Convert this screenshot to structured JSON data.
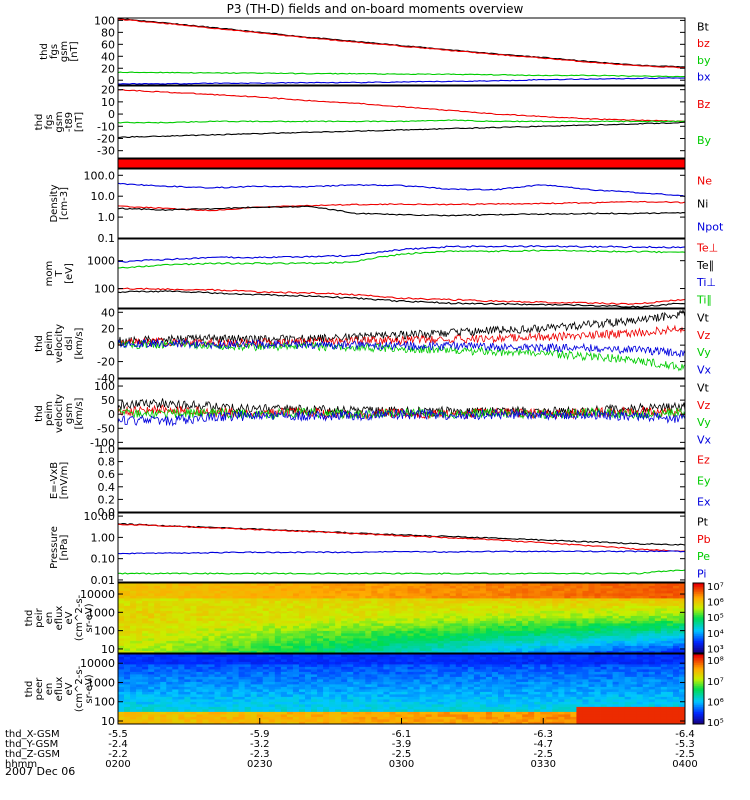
{
  "title": "P3 (TH-D) fields and on-board moments overview",
  "date_label": "2007 Dec 06",
  "colors": {
    "black": "#000000",
    "red": "#ee0000",
    "green": "#00cc00",
    "blue": "#0000dd",
    "band": "#ff0000"
  },
  "panels": [
    {
      "ylabel_lines": [
        "thd",
        "fgs",
        "gsm",
        "[nT]"
      ],
      "ticks": [
        [
          "100",
          100
        ],
        [
          "80",
          80
        ],
        [
          "60",
          60
        ],
        [
          "40",
          40
        ],
        [
          "20",
          20
        ],
        [
          "0",
          0
        ]
      ],
      "legend": [
        {
          "text": "Bt",
          "color": "black"
        },
        {
          "text": "bz",
          "color": "red"
        },
        {
          "text": "by",
          "color": "green"
        },
        {
          "text": "bx",
          "color": "blue"
        }
      ],
      "chart_data": {
        "type": "line",
        "ylim": [
          -8,
          104
        ],
        "x": [
          0,
          10,
          20,
          30,
          40,
          50,
          60,
          70,
          80,
          90,
          100,
          110,
          120
        ],
        "series": [
          {
            "name": "Bt",
            "color": "black",
            "values": [
              103,
              96,
              88,
              80,
              72,
              65,
              58,
              51,
              44,
              38,
              31,
              25,
              22
            ]
          },
          {
            "name": "bz",
            "color": "red",
            "values": [
              102,
              95,
              87,
              79,
              71,
              64,
              57,
              50,
              43,
              37,
              30,
              24,
              21
            ]
          },
          {
            "name": "by",
            "color": "green",
            "values": [
              13,
              13,
              12,
              12,
              11,
              11,
              10,
              10,
              9,
              8,
              8,
              7,
              6
            ]
          },
          {
            "name": "bx",
            "color": "blue",
            "values": [
              -6,
              -6,
              -5,
              -5,
              -4,
              -4,
              -3,
              -2,
              -1,
              1,
              2,
              3,
              4
            ]
          }
        ]
      }
    },
    {
      "ylabel_lines": [
        "thd",
        "fgs",
        "gsm",
        "-t89",
        "[nT]"
      ],
      "ticks": [
        [
          "20",
          20
        ],
        [
          "10",
          10
        ],
        [
          "0",
          0
        ],
        [
          "-10",
          -10
        ],
        [
          "-20",
          -20
        ],
        [
          "-30",
          -30
        ]
      ],
      "legend": [
        {
          "text": "Bz",
          "color": "red"
        },
        {
          "text": "By",
          "color": "green"
        }
      ],
      "chart_data": {
        "type": "line",
        "ylim": [
          -36,
          23
        ],
        "x": [
          0,
          10,
          20,
          30,
          40,
          50,
          60,
          70,
          80,
          90,
          100,
          110,
          120
        ],
        "series": [
          {
            "name": "Bz",
            "color": "red",
            "values": [
              20,
              18,
              16,
              14,
              11,
              9,
              6,
              3,
              0,
              -2,
              -4,
              -5,
              -6
            ]
          },
          {
            "name": "By",
            "color": "green",
            "values": [
              -7,
              -7,
              -6,
              -6,
              -6,
              -6,
              -6,
              -5,
              -6,
              -6,
              -6,
              -6,
              -6
            ]
          },
          {
            "name": "",
            "color": "black",
            "values": [
              -19,
              -18,
              -17,
              -16,
              -15,
              -14,
              -13,
              -12,
              -11,
              -10,
              -9,
              -8,
              -7
            ]
          }
        ]
      }
    },
    {
      "band": true,
      "chart_data": {
        "type": "bar",
        "values": [
          1
        ]
      }
    },
    {
      "ylabel_lines": [
        "Density",
        "[cm-3]"
      ],
      "log": true,
      "ticks": [
        [
          "100.0",
          100
        ],
        [
          "10.0",
          10
        ],
        [
          "1.0",
          1
        ],
        [
          "0.1",
          0.1
        ]
      ],
      "legend": [
        {
          "text": "Ne",
          "color": "red"
        },
        {
          "text": "Ni",
          "color": "black"
        },
        {
          "text": "Npot",
          "color": "blue"
        }
      ],
      "chart_data": {
        "type": "line",
        "ylim": [
          0.1,
          200
        ],
        "x": [
          0,
          10,
          20,
          30,
          40,
          50,
          60,
          70,
          80,
          90,
          100,
          110,
          120
        ],
        "series": [
          {
            "name": "Ne",
            "color": "red",
            "values": [
              3.3,
              2.6,
              2,
              3,
              3.5,
              4,
              4.2,
              4,
              4.2,
              4.5,
              4.8,
              5.5,
              5
            ]
          },
          {
            "name": "Ni",
            "color": "black",
            "values": [
              2.6,
              2.2,
              2.5,
              3,
              3.2,
              1.5,
              1.3,
              1.2,
              1.3,
              1.4,
              1.5,
              1.5,
              1.6
            ]
          },
          {
            "name": "Npot",
            "color": "blue",
            "values": [
              40,
              30,
              25,
              30,
              28,
              35,
              32,
              22,
              20,
              35,
              20,
              15,
              10
            ]
          }
        ]
      }
    },
    {
      "ylabel_lines": [
        "mom",
        "T",
        "[eV]"
      ],
      "log": true,
      "ticks": [
        [
          "1000",
          1000
        ],
        [
          "100",
          100
        ]
      ],
      "legend": [
        {
          "text": "Te⊥",
          "color": "red"
        },
        {
          "text": "Te∥",
          "color": "black"
        },
        {
          "text": "Ti⊥",
          "color": "blue"
        },
        {
          "text": "Ti∥",
          "color": "green"
        }
      ],
      "chart_data": {
        "type": "line",
        "ylim": [
          20,
          6000
        ],
        "x": [
          0,
          10,
          20,
          30,
          40,
          50,
          60,
          70,
          80,
          90,
          100,
          110,
          120
        ],
        "series": [
          {
            "name": "Te⊥",
            "color": "red",
            "values": [
              100,
              95,
              90,
              75,
              70,
              60,
              45,
              40,
              35,
              32,
              30,
              28,
              40
            ]
          },
          {
            "name": "Te∥",
            "color": "black",
            "values": [
              75,
              80,
              70,
              60,
              55,
              45,
              35,
              30,
              28,
              26,
              25,
              22,
              30
            ]
          },
          {
            "name": "Ti⊥",
            "color": "blue",
            "values": [
              900,
              1100,
              1300,
              1300,
              1400,
              1500,
              2500,
              3200,
              3300,
              3300,
              3200,
              3100,
              3000
            ]
          },
          {
            "name": "Ti∥",
            "color": "green",
            "values": [
              550,
              700,
              800,
              800,
              800,
              900,
              1700,
              2200,
              2200,
              2300,
              2200,
              2100,
              2000
            ]
          }
        ]
      }
    },
    {
      "ylabel_lines": [
        "thd",
        "peim",
        "velocity",
        "dsl",
        "[km/s]"
      ],
      "ticks": [
        [
          "40",
          40
        ],
        [
          "20",
          20
        ],
        [
          "0",
          0
        ],
        [
          "-20",
          -20
        ],
        [
          "-40",
          -40
        ]
      ],
      "legend": [
        {
          "text": "Vt",
          "color": "black"
        },
        {
          "text": "Vz",
          "color": "red"
        },
        {
          "text": "Vy",
          "color": "green"
        },
        {
          "text": "Vx",
          "color": "blue"
        }
      ],
      "chart_data": {
        "type": "line",
        "ylim": [
          -40,
          44
        ],
        "x": [
          0,
          10,
          20,
          30,
          40,
          50,
          60,
          70,
          80,
          90,
          100,
          110,
          120
        ],
        "series": [
          {
            "name": "Vt",
            "color": "black",
            "values": [
              6,
              7,
              8,
              7,
              8,
              10,
              12,
              15,
              18,
              20,
              25,
              30,
              38
            ]
          },
          {
            "name": "Vz",
            "color": "red",
            "values": [
              3,
              4,
              3,
              3,
              4,
              5,
              6,
              7,
              8,
              10,
              12,
              15,
              20
            ]
          },
          {
            "name": "Vy",
            "color": "green",
            "values": [
              0,
              1,
              0,
              -2,
              -1,
              -3,
              -4,
              -6,
              -8,
              -10,
              -14,
              -18,
              -28
            ]
          },
          {
            "name": "Vx",
            "color": "blue",
            "values": [
              2,
              2,
              1,
              1,
              0,
              0,
              -1,
              -1,
              -2,
              -3,
              -4,
              -6,
              -10
            ]
          }
        ]
      }
    },
    {
      "ylabel_lines": [
        "thd",
        "peim",
        "velocity",
        "gsm",
        "[km/s]"
      ],
      "ticks": [
        [
          "100",
          100
        ],
        [
          "50",
          50
        ],
        [
          "0",
          0
        ],
        [
          "-50",
          -50
        ],
        [
          "-100",
          -100
        ]
      ],
      "legend": [
        {
          "text": "Vt",
          "color": "black"
        },
        {
          "text": "Vz",
          "color": "red"
        },
        {
          "text": "Vy",
          "color": "green"
        },
        {
          "text": "Vx",
          "color": "blue"
        }
      ],
      "chart_data": {
        "type": "line",
        "ylim": [
          -120,
          125
        ],
        "x": [
          0,
          10,
          20,
          30,
          40,
          50,
          60,
          70,
          80,
          90,
          100,
          110,
          120
        ],
        "series": [
          {
            "name": "Vt",
            "color": "black",
            "values": [
              30,
              40,
              25,
              20,
              15,
              12,
              10,
              10,
              10,
              10,
              12,
              20,
              25
            ]
          },
          {
            "name": "Vz",
            "color": "red",
            "values": [
              10,
              15,
              5,
              5,
              5,
              0,
              5,
              0,
              5,
              0,
              5,
              10,
              0
            ]
          },
          {
            "name": "Vy",
            "color": "green",
            "values": [
              5,
              0,
              5,
              0,
              5,
              0,
              5,
              0,
              5,
              0,
              5,
              0,
              5
            ]
          },
          {
            "name": "Vx",
            "color": "blue",
            "values": [
              -20,
              -25,
              -10,
              -5,
              -5,
              -5,
              0,
              -5,
              0,
              -5,
              0,
              -10,
              -15
            ]
          }
        ]
      }
    },
    {
      "ylabel_lines": [
        "E=-VxB",
        "[mV/m]"
      ],
      "ticks": [
        [
          "1.0",
          1
        ],
        [
          "0.8",
          0.8
        ],
        [
          "0.6",
          0.6
        ],
        [
          "0.4",
          0.4
        ],
        [
          "0.2",
          0.2
        ],
        [
          "0.0",
          0
        ]
      ],
      "legend": [
        {
          "text": "Ez",
          "color": "red"
        },
        {
          "text": "Ey",
          "color": "green"
        },
        {
          "text": "Ex",
          "color": "blue"
        }
      ],
      "chart_data": {
        "type": "line",
        "ylim": [
          0,
          1
        ],
        "x": [],
        "series": []
      }
    },
    {
      "ylabel_lines": [
        "Pressure",
        "[nPa]"
      ],
      "log": true,
      "ticks": [
        [
          "10.00",
          10
        ],
        [
          "1.00",
          1
        ],
        [
          "0.10",
          0.1
        ],
        [
          "0.01",
          0.01
        ]
      ],
      "legend": [
        {
          "text": "Pt",
          "color": "black"
        },
        {
          "text": "Pb",
          "color": "red"
        },
        {
          "text": "Pe",
          "color": "green"
        },
        {
          "text": "Pi",
          "color": "blue"
        }
      ],
      "chart_data": {
        "type": "line",
        "ylim": [
          0.008,
          14
        ],
        "x": [
          0,
          10,
          20,
          30,
          40,
          50,
          60,
          70,
          80,
          90,
          100,
          110,
          120
        ],
        "series": [
          {
            "name": "Pt",
            "color": "black",
            "values": [
              4.3,
              3.5,
              2.9,
              2.4,
              2,
              1.6,
              1.3,
              1.1,
              0.9,
              0.75,
              0.62,
              0.5,
              0.45
            ]
          },
          {
            "name": "Pb",
            "color": "red",
            "values": [
              4.2,
              3.4,
              2.8,
              2.3,
              1.9,
              1.5,
              1.2,
              0.95,
              0.75,
              0.55,
              0.4,
              0.28,
              0.22
            ]
          },
          {
            "name": "Pe",
            "color": "green",
            "values": [
              0.02,
              0.02,
              0.02,
              0.02,
              0.02,
              0.02,
              0.02,
              0.02,
              0.02,
              0.02,
              0.02,
              0.02,
              0.03
            ]
          },
          {
            "name": "Pi",
            "color": "blue",
            "values": [
              0.17,
              0.18,
              0.19,
              0.2,
              0.2,
              0.2,
              0.21,
              0.21,
              0.22,
              0.22,
              0.22,
              0.22,
              0.22
            ]
          }
        ]
      }
    },
    {
      "ylabel_lines": [
        "thd",
        "peir",
        "en",
        "eflux",
        "eV",
        "(cm^2-s-",
        "sr-eV)"
      ],
      "log": true,
      "spectrogram": "ion",
      "ticks": [
        [
          "10000",
          10000
        ],
        [
          "1000",
          1000
        ],
        [
          "100",
          100
        ],
        [
          "10",
          10
        ]
      ],
      "colorbar_ticks": [
        [
          "10⁷",
          7
        ],
        [
          "10⁶",
          6
        ],
        [
          "10⁵",
          5
        ],
        [
          "10⁴",
          4
        ],
        [
          "10³",
          3
        ]
      ],
      "chart_data": {
        "type": "heatmap",
        "ylim": [
          6,
          40000
        ],
        "zlim": [
          2.7,
          7.2
        ]
      }
    },
    {
      "ylabel_lines": [
        "thd",
        "peer",
        "en",
        "eflux",
        "eV",
        "(cm^2-s-",
        "sr-eV)"
      ],
      "log": true,
      "spectrogram": "electron",
      "ticks": [
        [
          "10000",
          10000
        ],
        [
          "1000",
          1000
        ],
        [
          "100",
          100
        ],
        [
          "10",
          10
        ]
      ],
      "colorbar_ticks": [
        [
          "10⁸",
          8
        ],
        [
          "10⁷",
          7
        ],
        [
          "10⁶",
          6
        ],
        [
          "10⁵",
          5
        ]
      ],
      "chart_data": {
        "type": "heatmap",
        "ylim": [
          7,
          30000
        ],
        "zlim": [
          4.9,
          8.3
        ]
      }
    }
  ],
  "xaxis": {
    "rows": [
      {
        "label": "thd_X-GSM",
        "values": [
          "-5.5",
          "-5.9",
          "-6.1",
          "-6.3",
          "-6.4"
        ]
      },
      {
        "label": "thd_Y-GSM",
        "values": [
          "-2.4",
          "-3.2",
          "-3.9",
          "-4.7",
          "-5.3"
        ]
      },
      {
        "label": "thd_Z-GSM",
        "values": [
          "-2.2",
          "-2.3",
          "-2.5",
          "-2.5",
          "-2.5"
        ]
      },
      {
        "label": "hhmm",
        "values": [
          "0200",
          "0230",
          "0300",
          "0330",
          "0400"
        ]
      }
    ]
  }
}
